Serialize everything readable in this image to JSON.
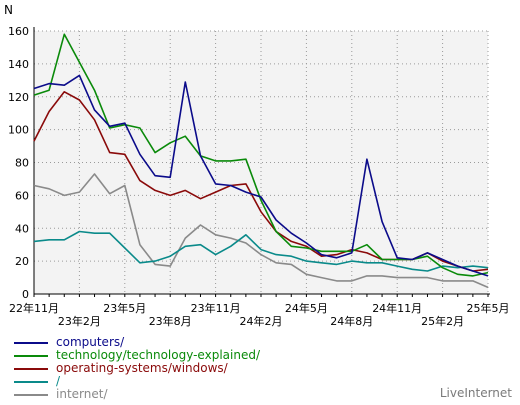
{
  "chart_data": {
    "type": "line",
    "ylabel": "N",
    "ylim": [
      0,
      160
    ],
    "yticks": [
      0,
      20,
      40,
      60,
      80,
      100,
      120,
      140,
      160
    ],
    "grid": true,
    "legend_position": "bottom-left",
    "x_tick_labels_top": [
      {
        "i": 0,
        "label": "22年11月"
      },
      {
        "i": 6,
        "label": "23年5月"
      },
      {
        "i": 12,
        "label": "23年11月"
      },
      {
        "i": 18,
        "label": "24年5月"
      },
      {
        "i": 24,
        "label": "24年11月"
      },
      {
        "i": 30,
        "label": "25年5月"
      }
    ],
    "x_tick_labels_bottom": [
      {
        "i": 3,
        "label": "23年2月"
      },
      {
        "i": 9,
        "label": "23年8月"
      },
      {
        "i": 15,
        "label": "24年2月"
      },
      {
        "i": 21,
        "label": "24年8月"
      },
      {
        "i": 27,
        "label": "25年2月"
      }
    ],
    "series": [
      {
        "name": "computers/",
        "color": "#0b0b8a",
        "values": [
          125,
          128,
          127,
          133,
          112,
          102,
          104,
          85,
          72,
          71,
          129,
          84,
          67,
          66,
          62,
          59,
          45,
          37,
          31,
          24,
          22,
          25,
          82,
          44,
          22,
          21,
          25,
          21,
          17,
          14,
          11
        ]
      },
      {
        "name": "technology/technology-explained/",
        "color": "#0a8a0a",
        "values": [
          121,
          124,
          158,
          141,
          124,
          101,
          103,
          101,
          86,
          92,
          96,
          84,
          81,
          81,
          82,
          57,
          38,
          29,
          28,
          26,
          26,
          26,
          30,
          21,
          21,
          21,
          23,
          16,
          12,
          11,
          13
        ]
      },
      {
        "name": "operating-systems/windows/",
        "color": "#8a0a0a",
        "values": [
          93,
          111,
          123,
          118,
          106,
          86,
          85,
          69,
          63,
          60,
          63,
          58,
          62,
          66,
          67,
          50,
          38,
          32,
          29,
          23,
          24,
          27,
          25,
          21,
          21,
          21,
          25,
          20,
          17,
          14,
          15
        ]
      },
      {
        "name": "/",
        "color": "#0a8a8a",
        "values": [
          32,
          33,
          33,
          38,
          37,
          37,
          28,
          19,
          20,
          23,
          29,
          30,
          24,
          29,
          36,
          27,
          24,
          23,
          20,
          19,
          18,
          20,
          19,
          19,
          17,
          15,
          14,
          17,
          16,
          17,
          16
        ]
      },
      {
        "name": "internet/",
        "color": "#8a8a8a",
        "values": [
          66,
          64,
          60,
          62,
          73,
          61,
          66,
          30,
          18,
          17,
          34,
          42,
          36,
          34,
          31,
          24,
          19,
          18,
          12,
          10,
          8,
          8,
          11,
          11,
          10,
          10,
          10,
          8,
          8,
          8,
          4
        ]
      }
    ]
  },
  "brand": "LiveInternet"
}
